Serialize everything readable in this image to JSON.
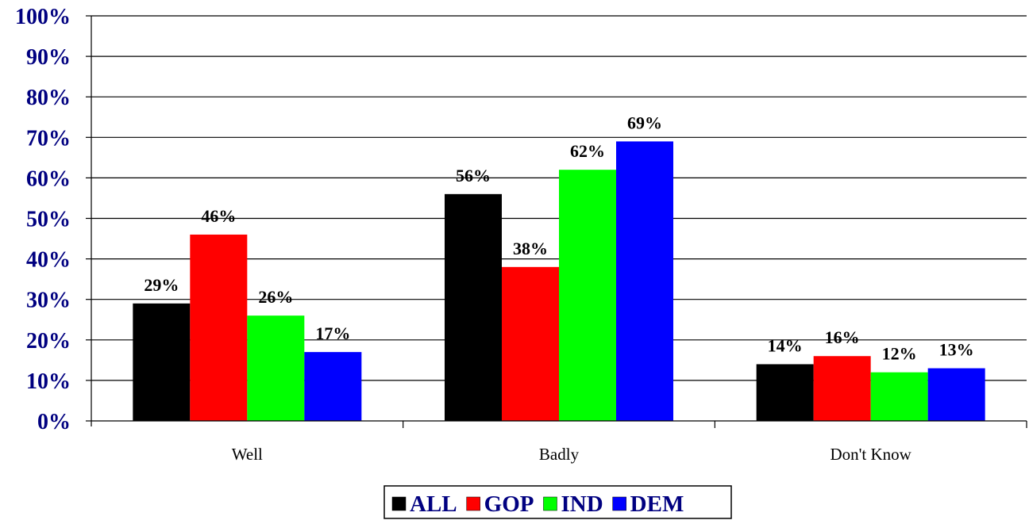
{
  "chart_data": {
    "type": "bar",
    "title": "",
    "xlabel": "",
    "ylabel": "",
    "categories": [
      "Well",
      "Badly",
      "Don't Know"
    ],
    "series": [
      {
        "name": "ALL",
        "color": "#000000",
        "values": [
          29,
          56,
          14
        ],
        "labels": [
          "29%",
          "56%",
          "14%"
        ]
      },
      {
        "name": "GOP",
        "color": "#ff0000",
        "values": [
          46,
          38,
          16
        ],
        "labels": [
          "46%",
          "38%",
          "16%"
        ]
      },
      {
        "name": "IND",
        "color": "#00ff00",
        "values": [
          26,
          62,
          12
        ],
        "labels": [
          "26%",
          "62%",
          "12%"
        ]
      },
      {
        "name": "DEM",
        "color": "#0000ff",
        "values": [
          17,
          69,
          13
        ],
        "labels": [
          "17%",
          "69%",
          "13%"
        ]
      }
    ],
    "ylim": [
      0,
      100
    ],
    "yticks": [
      "0%",
      "10%",
      "20%",
      "30%",
      "40%",
      "50%",
      "60%",
      "70%",
      "80%",
      "90%",
      "100%"
    ],
    "grid": true,
    "legend_position": "bottom-center"
  }
}
